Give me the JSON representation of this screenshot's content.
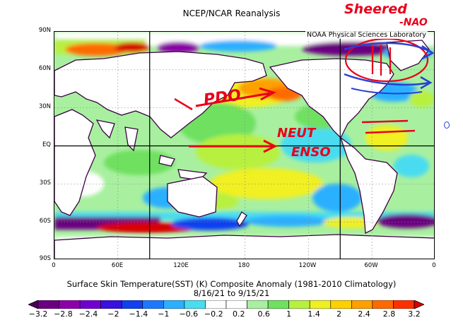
{
  "title": "NCEP/NCAR Reanalysis",
  "credit": "NOAA Physical Sciences Laboratory",
  "lat_labels": [
    "90N",
    "60N",
    "30N",
    "EQ",
    "30S",
    "60S",
    "90S"
  ],
  "lon_labels": [
    "0",
    "60E",
    "120E",
    "180",
    "120W",
    "60W",
    "0"
  ],
  "caption_line1": "Surface Skin Temperature(SST) (K) Composite Anomaly (1981-2010 Climatology)",
  "caption_line2": "8/16/21   to 9/15/21",
  "colorbar": {
    "labels": [
      "-3.2",
      "-2.8",
      "-2.4",
      "-2",
      "-1.4",
      "-1",
      "-0.6",
      "-0.2",
      "0.2",
      "0.6",
      "1",
      "1.4",
      "2",
      "2.4",
      "2.8",
      "3.2"
    ],
    "colors": [
      "#4b0055",
      "#6a0080",
      "#8b00a8",
      "#7000d0",
      "#3a10e0",
      "#1040f0",
      "#1e78ff",
      "#2ab0ff",
      "#4adcf0",
      "#ffffff",
      "#ffffff",
      "#a8f0a0",
      "#70e060",
      "#b8f040",
      "#f0f020",
      "#ffd000",
      "#ffa000",
      "#ff6a00",
      "#ff3000",
      "#d80000"
    ]
  },
  "annotations": {
    "pdo": "PDO",
    "neut": "NEUT",
    "enso": "ENSO",
    "sheered": "Sheered",
    "nao": "-NAO"
  },
  "colors": {
    "annotation_red": "#e8001a",
    "annotation_blue": "#2a3fd0",
    "land": "#ffffff",
    "coast": "#3a0040"
  }
}
